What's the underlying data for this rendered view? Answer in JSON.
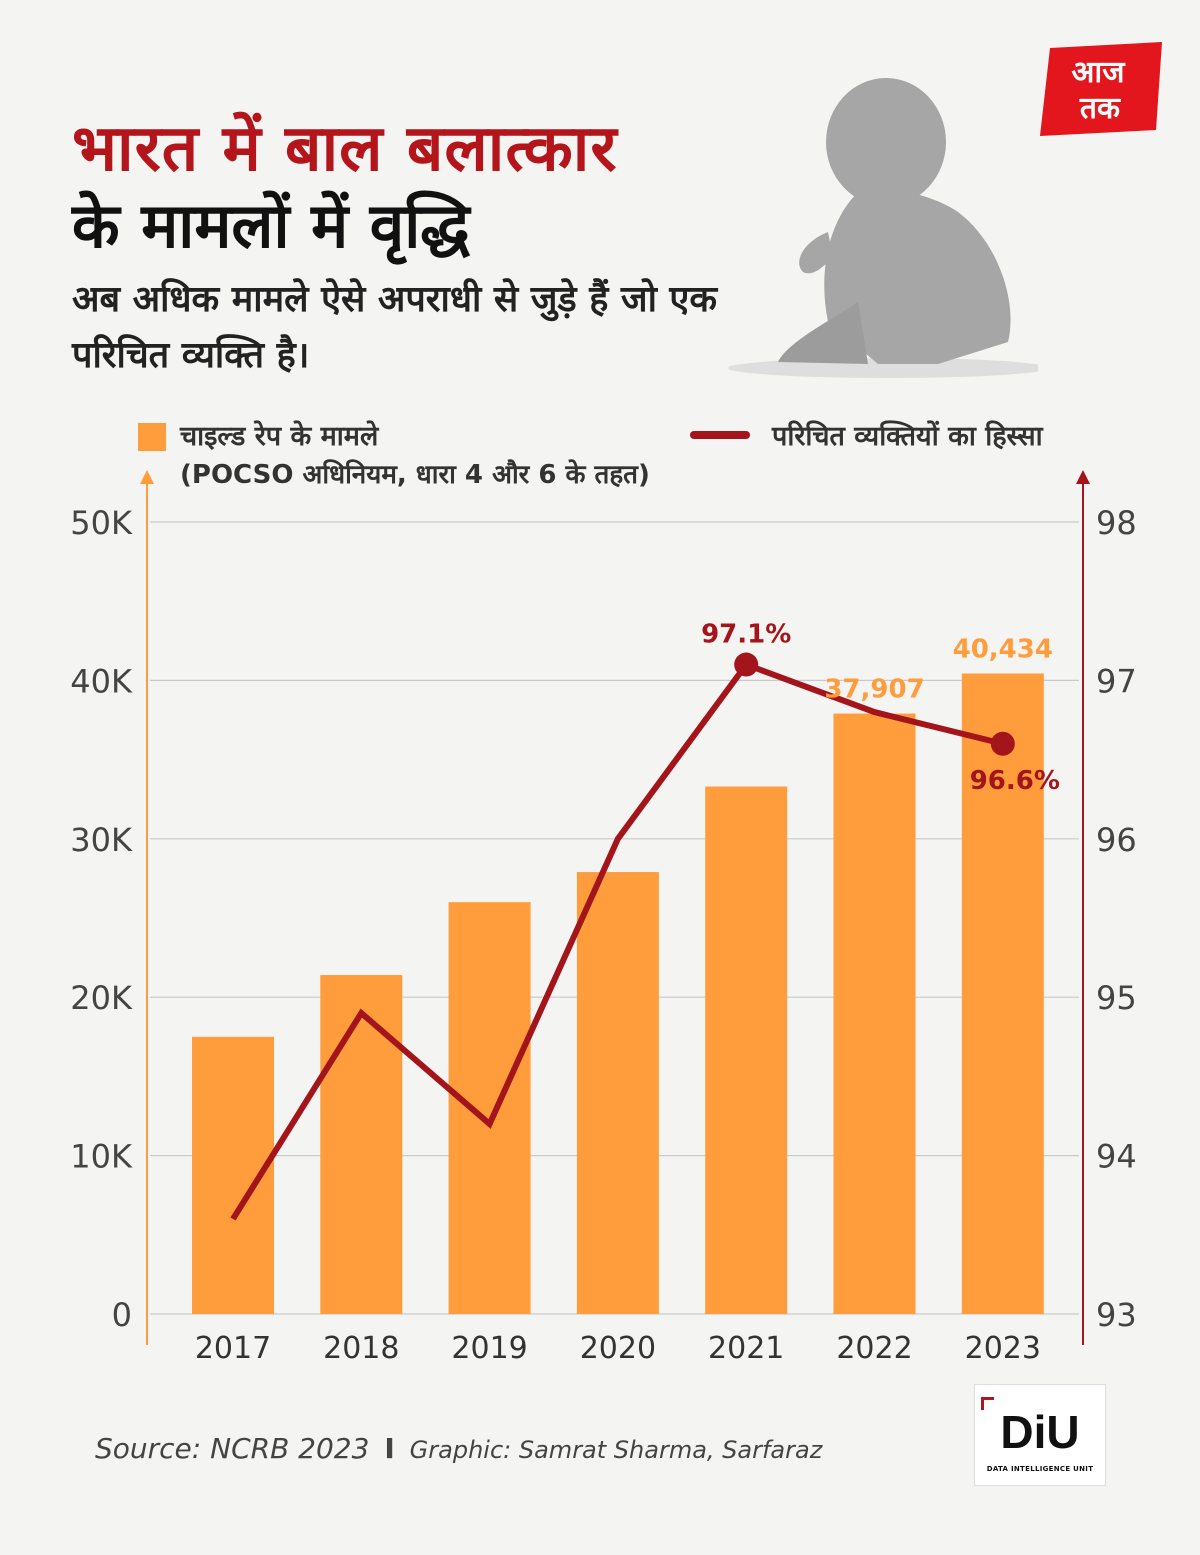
{
  "header": {
    "title_line1": "भारत में बाल बलात्कार",
    "title_line2": "के मामलों में वृद्धि",
    "subtitle": "अब अधिक मामले ऐसे अपराधी से जुड़े हैं जो एक परिचित व्यक्ति है।"
  },
  "logo": {
    "text_line1": "आज",
    "text_line2": "तक",
    "color": "#e2161c"
  },
  "legend": {
    "bar_label": "चाइल्ड रेप के मामले",
    "bar_sublabel": "(POCSO अधिनियम, धारा 4 और 6 के तहत)",
    "line_label": "परिचित व्यक्तियों का हिस्सा"
  },
  "chart_data": {
    "type": "bar",
    "categories": [
      "2017",
      "2018",
      "2019",
      "2020",
      "2021",
      "2022",
      "2023"
    ],
    "series": [
      {
        "name": "चाइल्ड रेप के मामले",
        "type": "bar",
        "axis": "left",
        "color": "#ff9d3c",
        "values": [
          17500,
          21400,
          26000,
          27900,
          33300,
          37907,
          40434
        ]
      },
      {
        "name": "परिचित व्यक्तियों का हिस्सा",
        "type": "line",
        "axis": "right",
        "color": "#a3141b",
        "values": [
          93.6,
          94.9,
          94.2,
          96.0,
          97.1,
          96.8,
          96.6
        ]
      }
    ],
    "y_left": {
      "ylim": [
        0,
        50000
      ],
      "ticks": [
        0,
        10000,
        20000,
        30000,
        40000,
        50000
      ],
      "tick_labels": [
        "0",
        "10K",
        "20K",
        "30K",
        "40K",
        "50K"
      ]
    },
    "y_right": {
      "ylim": [
        93,
        98
      ],
      "ticks": [
        93,
        94,
        95,
        96,
        97,
        98
      ],
      "tick_labels": [
        "93",
        "94",
        "95",
        "96",
        "97",
        "98"
      ]
    },
    "grid": true,
    "annotations": [
      {
        "series": 0,
        "index": 5,
        "text": "37,907"
      },
      {
        "series": 0,
        "index": 6,
        "text": "40,434"
      },
      {
        "series": 1,
        "index": 4,
        "text": "97.1%",
        "marker": true,
        "position": "above"
      },
      {
        "series": 1,
        "index": 6,
        "text": "96.6%",
        "marker": true,
        "position": "below"
      }
    ]
  },
  "footer": {
    "source": "Source: NCRB 2023",
    "separator": "I",
    "credit": "Graphic: Samrat Sharma, Sarfaraz",
    "diu_text": "DiU",
    "diu_sub": "DATA INTELLIGENCE UNIT"
  }
}
